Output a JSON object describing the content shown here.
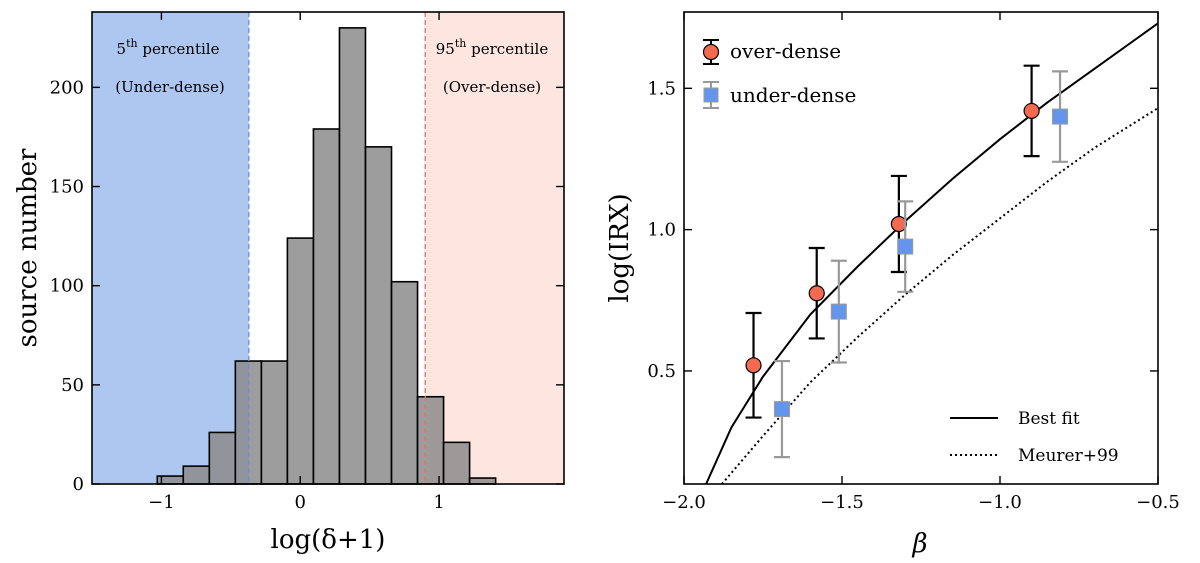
{
  "chart_data": [
    {
      "type": "bar",
      "name": "histogram",
      "xlabel": "log(δ+1)",
      "ylabel": "source number",
      "xlim": [
        -1.5,
        1.9
      ],
      "ylim": [
        0,
        238
      ],
      "xticks": [
        -1,
        0,
        1
      ],
      "yticks": [
        0,
        50,
        100,
        150,
        200
      ],
      "bin_width": 0.1875,
      "bins": [
        {
          "x0": -1.03,
          "count": 4
        },
        {
          "x0": -0.8425,
          "count": 9
        },
        {
          "x0": -0.655,
          "count": 26
        },
        {
          "x0": -0.4675,
          "count": 62
        },
        {
          "x0": -0.28,
          "count": 62
        },
        {
          "x0": -0.0925,
          "count": 124
        },
        {
          "x0": 0.095,
          "count": 179
        },
        {
          "x0": 0.2825,
          "count": 230
        },
        {
          "x0": 0.47,
          "count": 170
        },
        {
          "x0": 0.6575,
          "count": 102
        },
        {
          "x0": 0.845,
          "count": 44
        },
        {
          "x0": 1.0325,
          "count": 21
        },
        {
          "x0": 1.22,
          "count": 3
        }
      ],
      "under_dense_threshold": -0.37,
      "over_dense_threshold": 0.9,
      "region_labels": {
        "under": {
          "line1_base": "5",
          "line1_sup": "th",
          "line1_rest": " percentile",
          "line2": "(Under-dense)"
        },
        "over": {
          "line1_base": "95",
          "line1_sup": "th",
          "line1_rest": " percentile",
          "line2": "(Over-dense)"
        }
      },
      "colors": {
        "under_fill": "#aec7f0",
        "over_fill": "#fde5e0",
        "under_line": "#6a8fe0",
        "over_line": "#e8705a",
        "bar": "#8c8c8c"
      }
    },
    {
      "type": "scatter",
      "name": "irx-beta",
      "xlabel": "β",
      "ylabel": "log(IRX)",
      "xlim": [
        -2.0,
        -0.5
      ],
      "ylim": [
        0.1,
        1.77
      ],
      "xticks": [
        -2.0,
        -1.5,
        -1.0,
        -0.5
      ],
      "xtick_labels": [
        "−2.0",
        "−1.5",
        "−1.0",
        "−0.5"
      ],
      "yticks": [
        0.5,
        1.0,
        1.5
      ],
      "ytick_labels": [
        "0.5",
        "1.0",
        "1.5"
      ],
      "series": [
        {
          "name": "over-dense",
          "color": "#f26b50",
          "err_color": "#000000",
          "marker": "circle",
          "x": [
            -1.78,
            -1.58,
            -1.32,
            -0.9
          ],
          "y": [
            0.52,
            0.775,
            1.02,
            1.42
          ],
          "yerr": [
            0.185,
            0.16,
            0.17,
            0.16
          ]
        },
        {
          "name": "under-dense",
          "color": "#6495ed",
          "err_color": "#999999",
          "marker": "square",
          "x": [
            -1.69,
            -1.51,
            -1.3,
            -0.81
          ],
          "y": [
            0.365,
            0.71,
            0.94,
            1.4
          ],
          "yerr": [
            0.17,
            0.18,
            0.16,
            0.16
          ]
        }
      ],
      "lines": [
        {
          "name": "Best fit",
          "style": "solid",
          "x": [
            -1.93,
            -1.85,
            -1.75,
            -1.6,
            -1.45,
            -1.3,
            -1.15,
            -1.0,
            -0.85,
            -0.7,
            -0.5
          ],
          "y": [
            0.1,
            0.3,
            0.48,
            0.7,
            0.87,
            1.03,
            1.18,
            1.32,
            1.45,
            1.57,
            1.73
          ]
        },
        {
          "name": "Meurer+99",
          "style": "dotted",
          "x": [
            -1.88,
            -1.75,
            -1.6,
            -1.45,
            -1.3,
            -1.15,
            -1.0,
            -0.85,
            -0.7,
            -0.5
          ],
          "y": [
            0.1,
            0.27,
            0.46,
            0.62,
            0.77,
            0.91,
            1.04,
            1.17,
            1.29,
            1.43
          ]
        }
      ]
    }
  ]
}
